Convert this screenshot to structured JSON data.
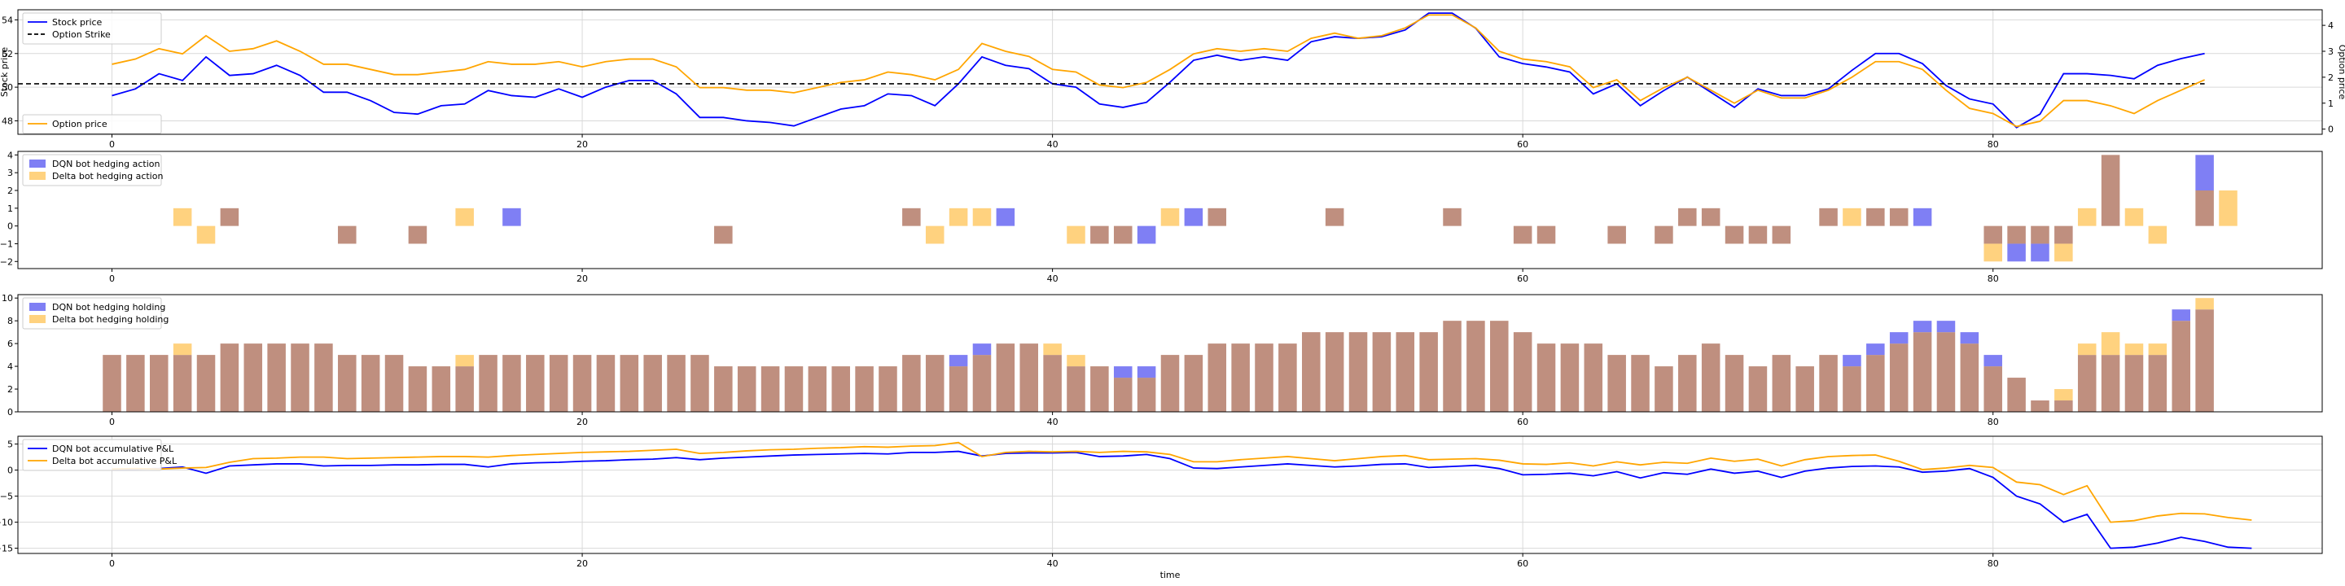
{
  "colors": {
    "stock": "#0000ff",
    "option": "#ffa500",
    "strike": "#000000",
    "dqn_bar": "#7f7ff4",
    "delta_bar": "#ffd27f",
    "overlap_bar": "#bf8f7f",
    "dqn_line": "#0000ff",
    "delta_line": "#ffa500",
    "grid": "#d9d9d9"
  },
  "chart_data": [
    {
      "type": "line",
      "ylabel": "Stock price",
      "y2label": "Option price",
      "ylim": [
        47.2,
        54.6
      ],
      "y2lim": [
        -0.2,
        4.6
      ],
      "yticks": [
        48,
        50,
        52,
        54
      ],
      "y2ticks": [
        0,
        1,
        2,
        3,
        4
      ],
      "xlim": [
        -4,
        94
      ],
      "xticks": [
        0,
        20,
        40,
        60,
        80
      ],
      "grid": true,
      "legend": "top-left",
      "series": [
        {
          "name": "Stock price",
          "axis": "left",
          "style": "solid",
          "color_key": "stock",
          "values": [
            49.5,
            49.9,
            50.8,
            50.4,
            51.8,
            50.7,
            50.8,
            51.3,
            50.7,
            49.7,
            49.7,
            49.2,
            48.5,
            48.4,
            48.9,
            49.0,
            49.8,
            49.5,
            49.4,
            49.9,
            49.4,
            50.0,
            50.4,
            50.4,
            49.6,
            48.2,
            48.2,
            48.0,
            47.9,
            47.7,
            48.2,
            48.7,
            48.9,
            49.6,
            49.5,
            48.9,
            50.2,
            51.8,
            51.3,
            51.1,
            50.2,
            50.0,
            49.0,
            48.8,
            49.1,
            50.3,
            51.6,
            51.9,
            51.6,
            51.8,
            51.6,
            52.7,
            53.0,
            52.9,
            53.0,
            53.4,
            54.4,
            54.4,
            53.5,
            51.8,
            51.4,
            51.2,
            50.9,
            49.6,
            50.2,
            48.9,
            49.8,
            50.6,
            49.7,
            48.8,
            49.9,
            49.5,
            49.5,
            49.9,
            51.0,
            52.0,
            52.0,
            51.4,
            50.1,
            49.3,
            49.0,
            47.6,
            48.4,
            50.8,
            50.8,
            50.7,
            50.5,
            51.3,
            51.7,
            52.0
          ]
        },
        {
          "name": "Option Strike",
          "axis": "left",
          "style": "dashed",
          "color_key": "strike",
          "x_range": [
            -4,
            89
          ],
          "value": 50.2
        },
        {
          "name": "Option price",
          "axis": "right",
          "style": "solid",
          "color_key": "option",
          "values": [
            2.5,
            2.7,
            3.1,
            2.9,
            3.6,
            3.0,
            3.1,
            3.4,
            3.0,
            2.5,
            2.5,
            2.3,
            2.1,
            2.1,
            2.2,
            2.3,
            2.6,
            2.5,
            2.5,
            2.6,
            2.4,
            2.6,
            2.7,
            2.7,
            2.4,
            1.6,
            1.6,
            1.5,
            1.5,
            1.4,
            1.6,
            1.8,
            1.9,
            2.2,
            2.1,
            1.9,
            2.3,
            3.3,
            3.0,
            2.8,
            2.3,
            2.2,
            1.7,
            1.6,
            1.8,
            2.3,
            2.9,
            3.1,
            3.0,
            3.1,
            3.0,
            3.5,
            3.7,
            3.5,
            3.6,
            3.9,
            4.4,
            4.4,
            3.9,
            3.0,
            2.7,
            2.6,
            2.4,
            1.6,
            1.9,
            1.1,
            1.6,
            2.0,
            1.5,
            1.0,
            1.5,
            1.2,
            1.2,
            1.5,
            2.0,
            2.6,
            2.6,
            2.3,
            1.5,
            0.8,
            0.6,
            0.1,
            0.3,
            1.1,
            1.1,
            0.9,
            0.6,
            1.1,
            1.5,
            1.9
          ]
        }
      ]
    },
    {
      "type": "bar",
      "ylim": [
        -2.4,
        4.2
      ],
      "yticks": [
        -2,
        -1,
        0,
        1,
        2,
        3,
        4
      ],
      "ytick_labels": [
        "−2",
        "−1",
        "0",
        "1",
        "2",
        "3",
        "4"
      ],
      "xlim": [
        -4,
        94
      ],
      "xticks": [
        0,
        20,
        40,
        60,
        80
      ],
      "grid": false,
      "legend": "top-left",
      "series": [
        {
          "name": "DQN bot hedging action",
          "color_key": "dqn_bar",
          "values": [
            0,
            0,
            0,
            0,
            0,
            1,
            0,
            0,
            0,
            0,
            -1,
            0,
            0,
            -1,
            0,
            0,
            0,
            1,
            0,
            0,
            0,
            0,
            0,
            0,
            0,
            0,
            -1,
            0,
            0,
            0,
            0,
            0,
            0,
            0,
            1,
            0,
            0,
            0,
            1,
            0,
            0,
            0,
            -1,
            -1,
            -1,
            0,
            1,
            1,
            0,
            0,
            0,
            0,
            1,
            0,
            0,
            0,
            0,
            1,
            0,
            0,
            -1,
            -1,
            0,
            0,
            -1,
            0,
            -1,
            1,
            1,
            -1,
            -1,
            -1,
            0,
            1,
            0,
            1,
            1,
            1,
            0,
            0,
            -1,
            -2,
            -2,
            -1,
            0,
            4,
            0,
            0,
            0,
            4,
            0
          ]
        },
        {
          "name": "Delta bot hedging action",
          "color_key": "delta_bar",
          "values": [
            0,
            0,
            0,
            1,
            -1,
            1,
            0,
            0,
            0,
            0,
            -1,
            0,
            0,
            -1,
            0,
            1,
            0,
            0,
            0,
            0,
            0,
            0,
            0,
            0,
            0,
            0,
            -1,
            0,
            0,
            0,
            0,
            0,
            0,
            0,
            1,
            -1,
            1,
            1,
            0,
            0,
            0,
            -1,
            -1,
            -1,
            0,
            1,
            0,
            1,
            0,
            0,
            0,
            0,
            1,
            0,
            0,
            0,
            0,
            1,
            0,
            0,
            -1,
            -1,
            0,
            0,
            -1,
            0,
            -1,
            1,
            1,
            -1,
            -1,
            -1,
            0,
            1,
            1,
            1,
            1,
            0,
            0,
            0,
            -2,
            -1,
            -1,
            -2,
            1,
            4,
            1,
            -1,
            0,
            2,
            2
          ]
        }
      ]
    },
    {
      "type": "bar",
      "ylim": [
        0,
        10.3
      ],
      "yticks": [
        0,
        2,
        4,
        6,
        8,
        10
      ],
      "xlim": [
        -4,
        94
      ],
      "xticks": [
        0,
        20,
        40,
        60,
        80
      ],
      "grid": false,
      "legend": "top-left",
      "series": [
        {
          "name": "DQN bot hedging holding",
          "color_key": "dqn_bar",
          "values": [
            5,
            5,
            5,
            5,
            5,
            6,
            6,
            6,
            6,
            6,
            5,
            5,
            5,
            4,
            4,
            4,
            5,
            5,
            5,
            5,
            5,
            5,
            5,
            5,
            5,
            5,
            4,
            4,
            4,
            4,
            4,
            4,
            4,
            4,
            5,
            5,
            5,
            6,
            6,
            6,
            5,
            4,
            4,
            4,
            4,
            5,
            5,
            6,
            6,
            6,
            6,
            7,
            7,
            7,
            7,
            7,
            7,
            8,
            8,
            8,
            7,
            6,
            6,
            6,
            5,
            5,
            4,
            5,
            6,
            5,
            4,
            5,
            4,
            5,
            5,
            6,
            7,
            8,
            8,
            7,
            5,
            3,
            1,
            1,
            5,
            5,
            5,
            5,
            9,
            9
          ]
        },
        {
          "name": "Delta bot hedging holding",
          "color_key": "delta_bar",
          "values": [
            5,
            5,
            5,
            6,
            5,
            6,
            6,
            6,
            6,
            6,
            5,
            5,
            5,
            4,
            4,
            5,
            5,
            5,
            5,
            5,
            5,
            5,
            5,
            5,
            5,
            5,
            4,
            4,
            4,
            4,
            4,
            4,
            4,
            4,
            5,
            5,
            4,
            5,
            6,
            6,
            6,
            5,
            4,
            3,
            3,
            5,
            5,
            6,
            6,
            6,
            6,
            7,
            7,
            7,
            7,
            7,
            7,
            8,
            8,
            8,
            7,
            6,
            6,
            6,
            5,
            5,
            4,
            5,
            6,
            5,
            4,
            5,
            4,
            5,
            4,
            5,
            6,
            7,
            7,
            6,
            4,
            3,
            1,
            2,
            6,
            7,
            6,
            6,
            8,
            10
          ]
        }
      ]
    },
    {
      "type": "line",
      "xlabel": "time",
      "ylim": [
        -16,
        6.5
      ],
      "yticks": [
        -15,
        -10,
        -5,
        0,
        5
      ],
      "ytick_labels": [
        "−15",
        "−10",
        "−5",
        "0",
        "5"
      ],
      "xlim": [
        -4,
        94
      ],
      "xticks": [
        0,
        20,
        40,
        60,
        80
      ],
      "grid": true,
      "legend": "top-left",
      "series": [
        {
          "name": "DQN bot accumulative P&L",
          "color_key": "dqn_line",
          "values": [
            0.2,
            0.2,
            0.3,
            0.6,
            -0.6,
            0.8,
            1.0,
            1.2,
            1.2,
            0.8,
            0.9,
            0.9,
            1.0,
            1.0,
            1.1,
            1.1,
            0.6,
            1.2,
            1.4,
            1.5,
            1.7,
            1.8,
            2.0,
            2.1,
            2.4,
            2.0,
            2.3,
            2.5,
            2.7,
            2.9,
            3.0,
            3.1,
            3.2,
            3.1,
            3.4,
            3.4,
            3.6,
            2.7,
            3.2,
            3.3,
            3.3,
            3.4,
            2.6,
            2.7,
            3.0,
            2.2,
            0.4,
            0.3,
            0.6,
            0.9,
            1.2,
            0.9,
            0.6,
            0.8,
            1.1,
            1.2,
            0.5,
            0.7,
            0.9,
            0.3,
            -0.9,
            -0.8,
            -0.6,
            -1.1,
            -0.3,
            -1.5,
            -0.5,
            -0.8,
            0.2,
            -0.6,
            -0.2,
            -1.4,
            -0.2,
            0.4,
            0.7,
            0.8,
            0.6,
            -0.4,
            -0.2,
            0.3,
            -1.4,
            -5.0,
            -6.5,
            -10.0,
            -8.5,
            -15.0,
            -14.8,
            -14.0,
            -12.9,
            -13.7,
            -14.8,
            -15.0
          ]
        },
        {
          "name": "Delta bot accumulative P&L",
          "color_key": "delta_line",
          "values": [
            0.2,
            0.3,
            0.2,
            0.4,
            0.5,
            1.5,
            2.2,
            2.3,
            2.5,
            2.5,
            2.2,
            2.3,
            2.4,
            2.5,
            2.6,
            2.6,
            2.5,
            2.8,
            3.0,
            3.2,
            3.4,
            3.5,
            3.6,
            3.8,
            4.0,
            3.2,
            3.4,
            3.7,
            3.9,
            4.0,
            4.2,
            4.3,
            4.5,
            4.4,
            4.6,
            4.7,
            5.3,
            2.6,
            3.4,
            3.6,
            3.5,
            3.6,
            3.4,
            3.6,
            3.5,
            3.0,
            1.6,
            1.6,
            2.0,
            2.3,
            2.6,
            2.2,
            1.8,
            2.2,
            2.6,
            2.8,
            2.0,
            2.1,
            2.2,
            1.9,
            1.2,
            1.1,
            1.4,
            0.8,
            1.6,
            1.0,
            1.5,
            1.3,
            2.3,
            1.7,
            2.1,
            0.8,
            2.0,
            2.6,
            2.8,
            2.9,
            1.7,
            0.1,
            0.4,
            0.9,
            0.5,
            -2.3,
            -2.8,
            -4.7,
            -3.0,
            -10.0,
            -9.7,
            -8.8,
            -8.3,
            -8.4,
            -9.1,
            -9.6
          ]
        }
      ]
    }
  ]
}
